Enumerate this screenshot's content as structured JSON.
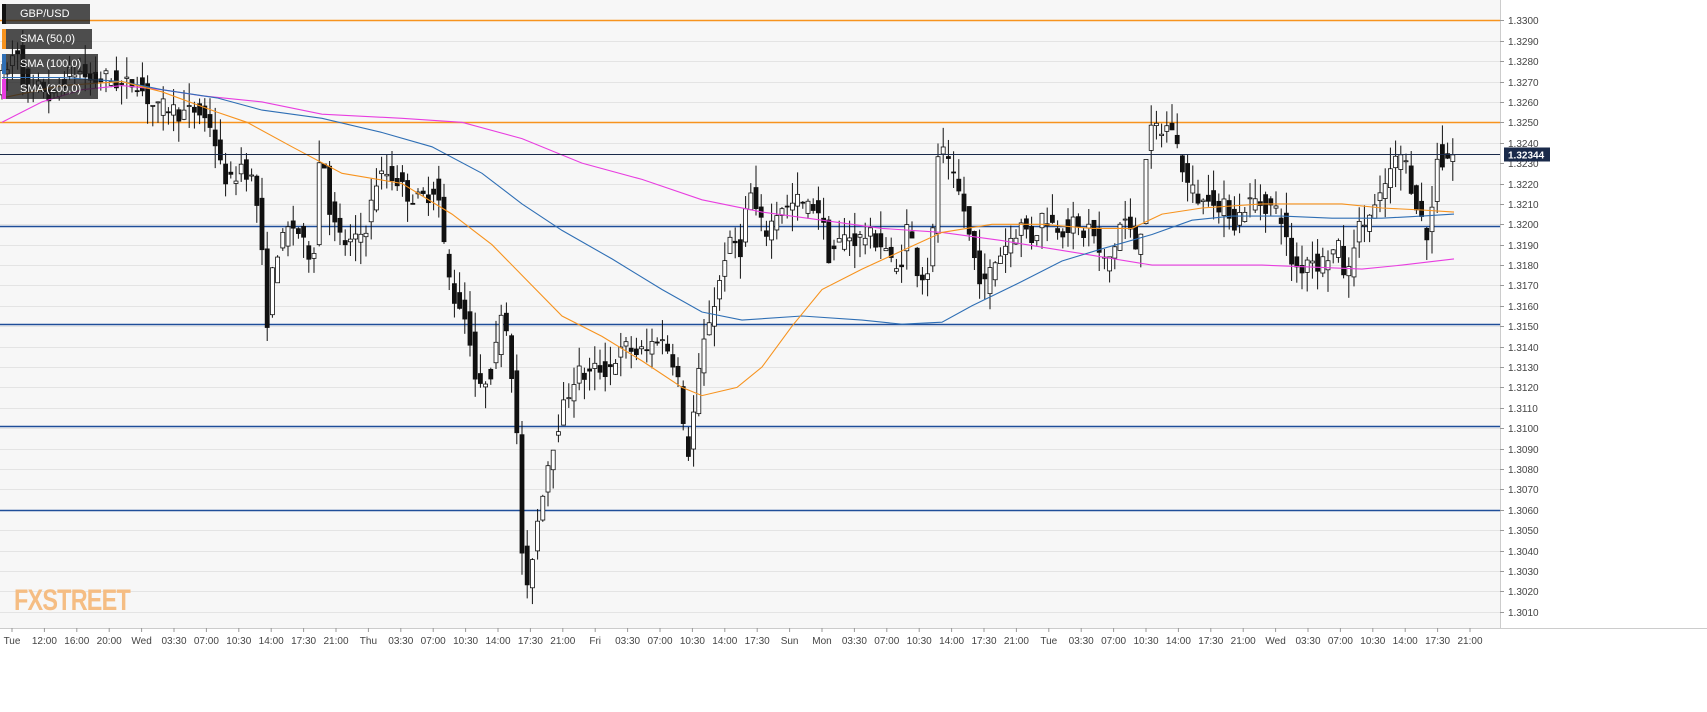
{
  "chart_data": {
    "type": "candlestick",
    "symbol": "GBP/USD",
    "legend": [
      {
        "label": "GBP/USD",
        "color": "#111111"
      },
      {
        "label": "SMA (50,0)",
        "color": "#f7931e"
      },
      {
        "label": "SMA (100,0)",
        "color": "#2f6fb5"
      },
      {
        "label": "SMA (200,0)",
        "color": "#e83ee0"
      }
    ],
    "ylim": [
      1.3002,
      1.331
    ],
    "y_ticks": [
      "1.3010",
      "1.3020",
      "1.3030",
      "1.3040",
      "1.3050",
      "1.3060",
      "1.3070",
      "1.3080",
      "1.3090",
      "1.3100",
      "1.3110",
      "1.3120",
      "1.3130",
      "1.3140",
      "1.3150",
      "1.3160",
      "1.3170",
      "1.3180",
      "1.3190",
      "1.3200",
      "1.3210",
      "1.3220",
      "1.3230",
      "1.3240",
      "1.3250",
      "1.3260",
      "1.3270",
      "1.3280",
      "1.3290",
      "1.3300"
    ],
    "x_ticks": [
      "Tue",
      "12:00",
      "16:00",
      "20:00",
      "Wed",
      "03:30",
      "07:00",
      "10:30",
      "14:00",
      "17:30",
      "21:00",
      "Thu",
      "03:30",
      "07:00",
      "10:30",
      "14:00",
      "17:30",
      "21:00",
      "Fri",
      "03:30",
      "07:00",
      "10:30",
      "14:00",
      "17:30",
      "Sun",
      "Mon",
      "03:30",
      "07:00",
      "10:30",
      "14:00",
      "17:30",
      "21:00",
      "Tue",
      "03:30",
      "07:00",
      "10:30",
      "14:00",
      "17:30",
      "21:00",
      "Wed",
      "03:30",
      "07:00",
      "10:30",
      "14:00",
      "17:30",
      "21:00"
    ],
    "current_price": "1.32344",
    "horizontal_levels": [
      {
        "value": 1.33,
        "color": "#f7931e"
      },
      {
        "value": 1.325,
        "color": "#f7931e"
      },
      {
        "value": 1.3199,
        "color": "#1f4e99"
      },
      {
        "value": 1.3151,
        "color": "#1f4e99"
      },
      {
        "value": 1.3101,
        "color": "#1f4e99"
      },
      {
        "value": 1.306,
        "color": "#1f4e99"
      }
    ],
    "path_anchors": [
      [
        0,
        1.3268
      ],
      [
        10,
        1.3275
      ],
      [
        20,
        1.3288
      ],
      [
        30,
        1.3262
      ],
      [
        45,
        1.3268
      ],
      [
        55,
        1.326
      ],
      [
        65,
        1.327
      ],
      [
        80,
        1.3276
      ],
      [
        95,
        1.327
      ],
      [
        110,
        1.3272
      ],
      [
        125,
        1.3268
      ],
      [
        140,
        1.327
      ],
      [
        150,
        1.3262
      ],
      [
        160,
        1.3256
      ],
      [
        170,
        1.3258
      ],
      [
        185,
        1.3254
      ],
      [
        200,
        1.3256
      ],
      [
        215,
        1.3248
      ],
      [
        225,
        1.3225
      ],
      [
        235,
        1.322
      ],
      [
        245,
        1.323
      ],
      [
        255,
        1.3222
      ],
      [
        262,
        1.3205
      ],
      [
        270,
        1.3152
      ],
      [
        278,
        1.3185
      ],
      [
        286,
        1.3192
      ],
      [
        294,
        1.32
      ],
      [
        302,
        1.3196
      ],
      [
        310,
        1.3185
      ],
      [
        318,
        1.319
      ],
      [
        324,
        1.3245
      ],
      [
        332,
        1.321
      ],
      [
        340,
        1.3195
      ],
      [
        350,
        1.319
      ],
      [
        360,
        1.3192
      ],
      [
        370,
        1.32
      ],
      [
        380,
        1.3222
      ],
      [
        390,
        1.3225
      ],
      [
        400,
        1.3222
      ],
      [
        410,
        1.3215
      ],
      [
        420,
        1.3212
      ],
      [
        430,
        1.3214
      ],
      [
        440,
        1.322
      ],
      [
        447,
        1.319
      ],
      [
        455,
        1.3165
      ],
      [
        465,
        1.316
      ],
      [
        473,
        1.3145
      ],
      [
        481,
        1.3115
      ],
      [
        489,
        1.3125
      ],
      [
        497,
        1.313
      ],
      [
        505,
        1.3162
      ],
      [
        513,
        1.314
      ],
      [
        520,
        1.3095
      ],
      [
        528,
        1.301
      ],
      [
        536,
        1.304
      ],
      [
        544,
        1.3065
      ],
      [
        552,
        1.3085
      ],
      [
        560,
        1.31
      ],
      [
        570,
        1.3115
      ],
      [
        580,
        1.3128
      ],
      [
        590,
        1.3125
      ],
      [
        600,
        1.313
      ],
      [
        610,
        1.3128
      ],
      [
        620,
        1.3135
      ],
      [
        630,
        1.314
      ],
      [
        640,
        1.3137
      ],
      [
        650,
        1.3138
      ],
      [
        660,
        1.3145
      ],
      [
        670,
        1.314
      ],
      [
        680,
        1.313
      ],
      [
        686,
        1.31
      ],
      [
        692,
        1.3088
      ],
      [
        700,
        1.312
      ],
      [
        710,
        1.315
      ],
      [
        720,
        1.3165
      ],
      [
        728,
        1.3185
      ],
      [
        736,
        1.3192
      ],
      [
        744,
        1.3188
      ],
      [
        752,
        1.3218
      ],
      [
        760,
        1.3205
      ],
      [
        768,
        1.3195
      ],
      [
        776,
        1.3202
      ],
      [
        784,
        1.321
      ],
      [
        792,
        1.3207
      ],
      [
        800,
        1.3212
      ],
      [
        810,
        1.3208
      ],
      [
        820,
        1.321
      ],
      [
        826,
        1.32
      ],
      [
        832,
        1.3185
      ],
      [
        840,
        1.319
      ],
      [
        850,
        1.3195
      ],
      [
        860,
        1.3192
      ],
      [
        870,
        1.3195
      ],
      [
        880,
        1.3192
      ],
      [
        890,
        1.3188
      ],
      [
        898,
        1.3175
      ],
      [
        906,
        1.3185
      ],
      [
        912,
        1.3205
      ],
      [
        918,
        1.318
      ],
      [
        926,
        1.3175
      ],
      [
        934,
        1.318
      ],
      [
        942,
        1.324
      ],
      [
        950,
        1.323
      ],
      [
        958,
        1.322
      ],
      [
        966,
        1.321
      ],
      [
        972,
        1.3195
      ],
      [
        980,
        1.3178
      ],
      [
        988,
        1.317
      ],
      [
        996,
        1.318
      ],
      [
        1006,
        1.3188
      ],
      [
        1016,
        1.3195
      ],
      [
        1026,
        1.32
      ],
      [
        1036,
        1.3192
      ],
      [
        1046,
        1.3205
      ],
      [
        1056,
        1.32
      ],
      [
        1066,
        1.3198
      ],
      [
        1076,
        1.32
      ],
      [
        1086,
        1.3195
      ],
      [
        1094,
        1.32
      ],
      [
        1102,
        1.3185
      ],
      [
        1110,
        1.318
      ],
      [
        1118,
        1.319
      ],
      [
        1126,
        1.3205
      ],
      [
        1134,
        1.3195
      ],
      [
        1142,
        1.3185
      ],
      [
        1150,
        1.324
      ],
      [
        1158,
        1.3248
      ],
      [
        1166,
        1.3245
      ],
      [
        1174,
        1.325
      ],
      [
        1182,
        1.3235
      ],
      [
        1190,
        1.322
      ],
      [
        1198,
        1.3215
      ],
      [
        1206,
        1.321
      ],
      [
        1214,
        1.3218
      ],
      [
        1222,
        1.3205
      ],
      [
        1230,
        1.321
      ],
      [
        1238,
        1.32
      ],
      [
        1246,
        1.3208
      ],
      [
        1256,
        1.3212
      ],
      [
        1266,
        1.321
      ],
      [
        1276,
        1.3208
      ],
      [
        1284,
        1.3205
      ],
      [
        1290,
        1.319
      ],
      [
        1296,
        1.318
      ],
      [
        1304,
        1.3178
      ],
      [
        1312,
        1.3185
      ],
      [
        1322,
        1.318
      ],
      [
        1332,
        1.3185
      ],
      [
        1342,
        1.3188
      ],
      [
        1350,
        1.317
      ],
      [
        1358,
        1.3195
      ],
      [
        1366,
        1.32
      ],
      [
        1374,
        1.3205
      ],
      [
        1382,
        1.321
      ],
      [
        1390,
        1.3222
      ],
      [
        1398,
        1.323
      ],
      [
        1406,
        1.3235
      ],
      [
        1414,
        1.322
      ],
      [
        1420,
        1.321
      ],
      [
        1426,
        1.32
      ],
      [
        1432,
        1.319
      ],
      [
        1440,
        1.3235
      ],
      [
        1446,
        1.323
      ],
      [
        1452,
        1.3234
      ]
    ],
    "sma50": [
      [
        0,
        1.3262
      ],
      [
        60,
        1.3268
      ],
      [
        120,
        1.327
      ],
      [
        160,
        1.3265
      ],
      [
        215,
        1.3255
      ],
      [
        245,
        1.325
      ],
      [
        290,
        1.3238
      ],
      [
        340,
        1.3225
      ],
      [
        400,
        1.322
      ],
      [
        450,
        1.3205
      ],
      [
        490,
        1.319
      ],
      [
        530,
        1.317
      ],
      [
        560,
        1.3155
      ],
      [
        600,
        1.3145
      ],
      [
        640,
        1.3133
      ],
      [
        680,
        1.312
      ],
      [
        700,
        1.3116
      ],
      [
        735,
        1.312
      ],
      [
        760,
        1.313
      ],
      [
        790,
        1.315
      ],
      [
        820,
        1.3168
      ],
      [
        860,
        1.3178
      ],
      [
        900,
        1.3187
      ],
      [
        940,
        1.3196
      ],
      [
        990,
        1.32
      ],
      [
        1040,
        1.32
      ],
      [
        1090,
        1.3198
      ],
      [
        1130,
        1.3198
      ],
      [
        1160,
        1.3205
      ],
      [
        1200,
        1.3208
      ],
      [
        1260,
        1.321
      ],
      [
        1300,
        1.321
      ],
      [
        1340,
        1.321
      ],
      [
        1380,
        1.3208
      ],
      [
        1420,
        1.3207
      ],
      [
        1452,
        1.3206
      ]
    ],
    "sma100": [
      [
        0,
        1.3272
      ],
      [
        60,
        1.3272
      ],
      [
        120,
        1.327
      ],
      [
        160,
        1.3266
      ],
      [
        215,
        1.3262
      ],
      [
        260,
        1.3256
      ],
      [
        320,
        1.3252
      ],
      [
        380,
        1.3245
      ],
      [
        430,
        1.3238
      ],
      [
        480,
        1.3225
      ],
      [
        520,
        1.321
      ],
      [
        560,
        1.3197
      ],
      [
        610,
        1.3183
      ],
      [
        660,
        1.3168
      ],
      [
        700,
        1.3157
      ],
      [
        740,
        1.3153
      ],
      [
        800,
        1.3155
      ],
      [
        860,
        1.3153
      ],
      [
        900,
        1.3151
      ],
      [
        940,
        1.3152
      ],
      [
        970,
        1.316
      ],
      [
        1020,
        1.3172
      ],
      [
        1060,
        1.3182
      ],
      [
        1100,
        1.3188
      ],
      [
        1150,
        1.3195
      ],
      [
        1190,
        1.3202
      ],
      [
        1230,
        1.3204
      ],
      [
        1280,
        1.3204
      ],
      [
        1330,
        1.3203
      ],
      [
        1380,
        1.3203
      ],
      [
        1420,
        1.3204
      ],
      [
        1452,
        1.3205
      ]
    ],
    "sma200": [
      [
        0,
        1.325
      ],
      [
        40,
        1.326
      ],
      [
        80,
        1.3266
      ],
      [
        120,
        1.3268
      ],
      [
        160,
        1.3266
      ],
      [
        200,
        1.3263
      ],
      [
        260,
        1.326
      ],
      [
        320,
        1.3254
      ],
      [
        400,
        1.3252
      ],
      [
        460,
        1.325
      ],
      [
        520,
        1.3242
      ],
      [
        580,
        1.323
      ],
      [
        640,
        1.3222
      ],
      [
        700,
        1.3212
      ],
      [
        760,
        1.3206
      ],
      [
        820,
        1.3202
      ],
      [
        880,
        1.3198
      ],
      [
        940,
        1.3196
      ],
      [
        1000,
        1.3192
      ],
      [
        1050,
        1.3188
      ],
      [
        1100,
        1.3184
      ],
      [
        1150,
        1.318
      ],
      [
        1200,
        1.318
      ],
      [
        1260,
        1.318
      ],
      [
        1310,
        1.3179
      ],
      [
        1360,
        1.3178
      ],
      [
        1400,
        1.318
      ],
      [
        1452,
        1.3183
      ]
    ]
  },
  "branding": {
    "logo_fx": "FX",
    "logo_street": "STREET"
  }
}
